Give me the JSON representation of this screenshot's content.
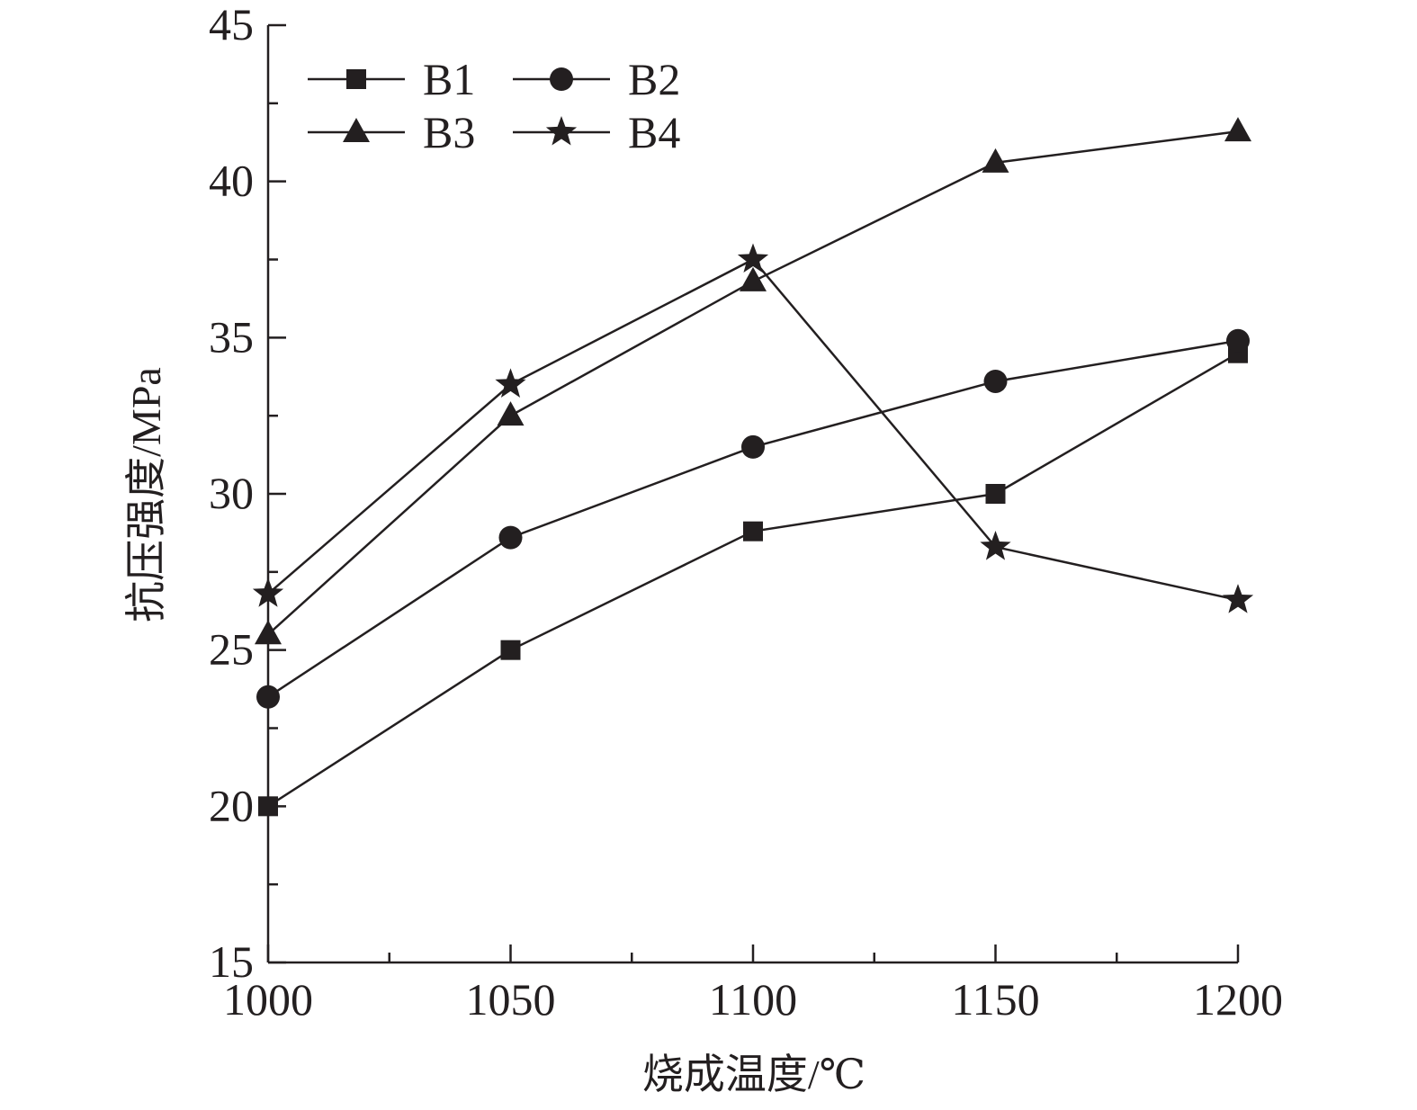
{
  "chart_data": {
    "type": "line",
    "xlabel": "烧成温度/℃",
    "ylabel": "抗压强度/MPa",
    "x": [
      1000,
      1050,
      1100,
      1150,
      1200
    ],
    "xlim": [
      1000,
      1200
    ],
    "ylim": [
      15,
      45
    ],
    "x_ticks": [
      "1000",
      "1050",
      "1100",
      "1150",
      "1200"
    ],
    "y_ticks": [
      "15",
      "20",
      "25",
      "30",
      "35",
      "40",
      "45"
    ],
    "grid": false,
    "legend_position": "top-left",
    "line_color": "#231f20",
    "series": [
      {
        "name": "B1",
        "marker": "square",
        "values": [
          20.0,
          25.0,
          28.8,
          30.0,
          34.5
        ]
      },
      {
        "name": "B2",
        "marker": "circle",
        "values": [
          23.5,
          28.6,
          31.5,
          33.6,
          34.9
        ]
      },
      {
        "name": "B3",
        "marker": "triangle",
        "values": [
          25.5,
          32.5,
          36.8,
          40.6,
          41.6
        ]
      },
      {
        "name": "B4",
        "marker": "star",
        "values": [
          26.8,
          33.5,
          37.5,
          28.3,
          26.6
        ]
      }
    ]
  }
}
